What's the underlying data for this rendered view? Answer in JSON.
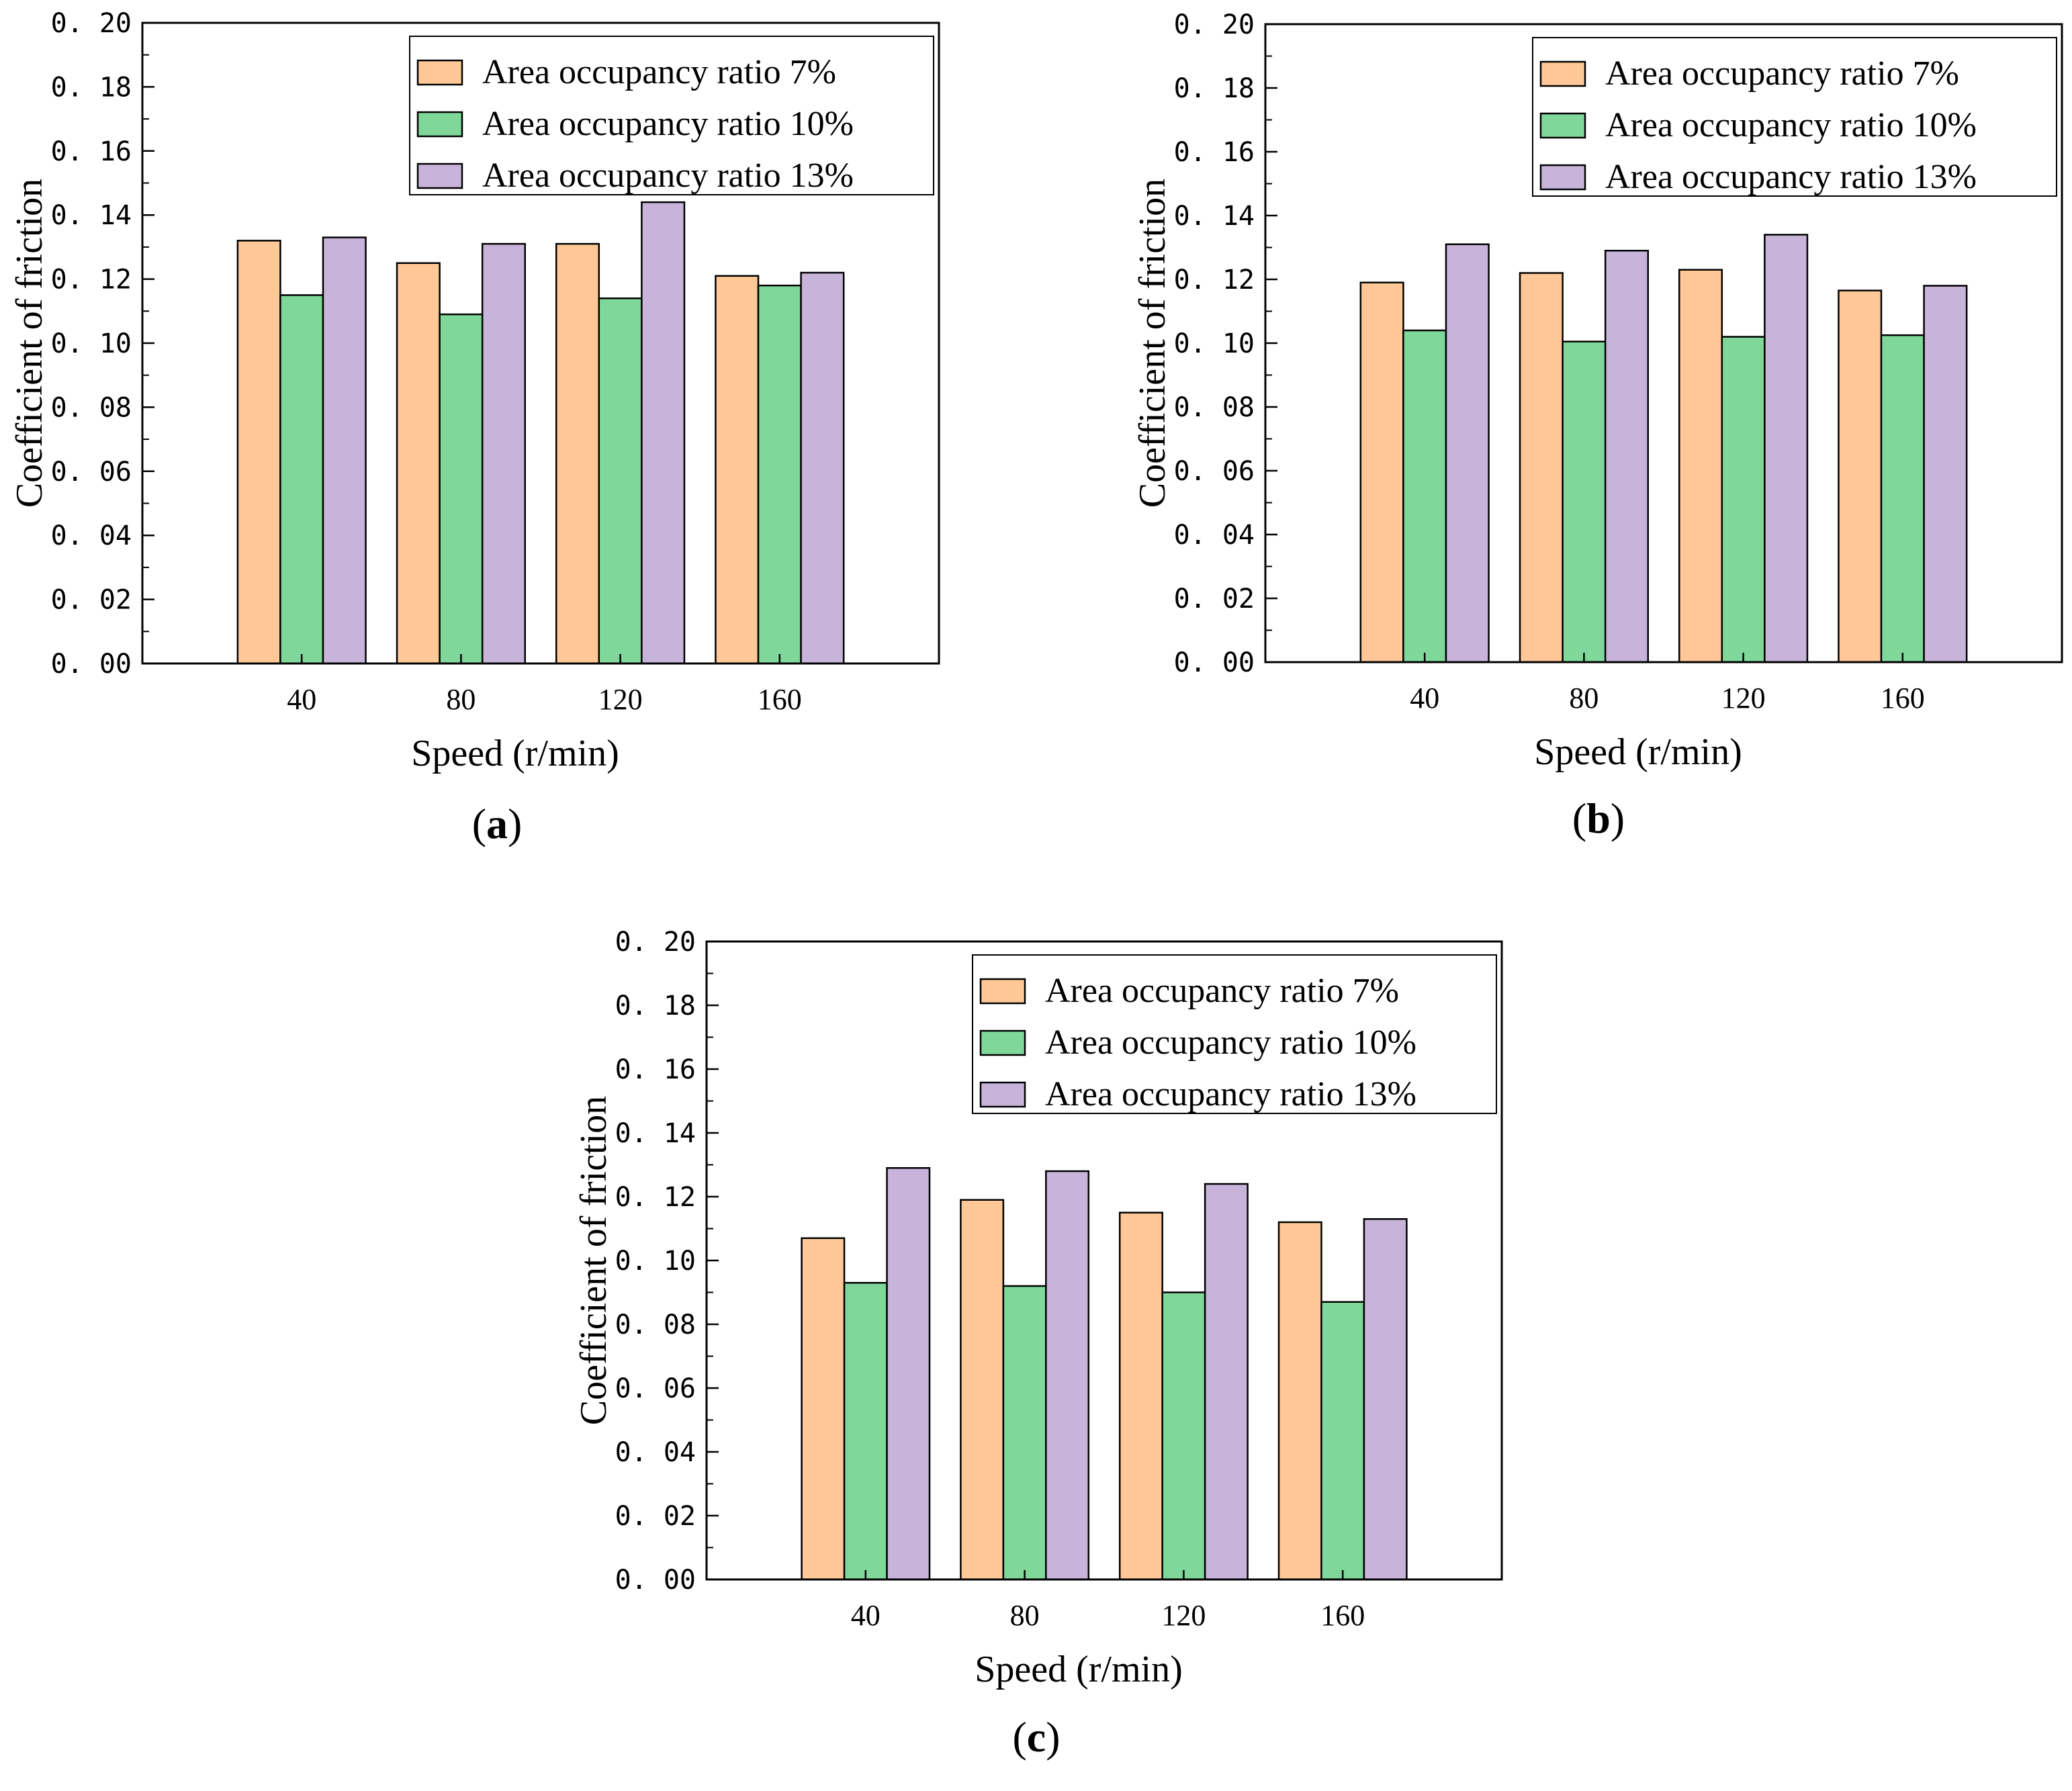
{
  "figure": {
    "panels": [
      "(a)",
      "(b)",
      "(c)"
    ]
  },
  "colors": {
    "ratio_7": "#FFC896",
    "ratio_10": "#7FD89A",
    "ratio_13": "#C8B4DA",
    "axis": "#000000"
  },
  "chart_data": [
    {
      "type": "bar",
      "panel_label": "(a)",
      "caption_letter": "a",
      "categories": [
        "40",
        "80",
        "120",
        "160"
      ],
      "series": [
        {
          "name": "Area occupancy ratio 7%",
          "color_key": "ratio_7",
          "values": [
            0.132,
            0.125,
            0.131,
            0.121
          ]
        },
        {
          "name": "Area occupancy ratio 10%",
          "color_key": "ratio_10",
          "values": [
            0.115,
            0.109,
            0.114,
            0.118
          ]
        },
        {
          "name": "Area occupancy ratio 13%",
          "color_key": "ratio_13",
          "values": [
            0.133,
            0.131,
            0.144,
            0.122
          ]
        }
      ],
      "yticks": [
        "0. 00",
        "0. 02",
        "0. 04",
        "0. 06",
        "0. 08",
        "0. 10",
        "0. 12",
        "0. 14",
        "0. 16",
        "0. 18",
        "0. 20"
      ],
      "ylim": [
        0,
        0.2
      ],
      "xlabel": "Speed (r/min)",
      "ylabel": "Coefficient of friction",
      "legend_position": "top-right",
      "grid": false
    },
    {
      "type": "bar",
      "panel_label": "(b)",
      "caption_letter": "b",
      "categories": [
        "40",
        "80",
        "120",
        "160"
      ],
      "series": [
        {
          "name": "Area occupancy ratio 7%",
          "color_key": "ratio_7",
          "values": [
            0.119,
            0.122,
            0.123,
            0.1165
          ]
        },
        {
          "name": "Area occupancy ratio 10%",
          "color_key": "ratio_10",
          "values": [
            0.104,
            0.1005,
            0.102,
            0.1025
          ]
        },
        {
          "name": "Area occupancy ratio 13%",
          "color_key": "ratio_13",
          "values": [
            0.131,
            0.129,
            0.134,
            0.118
          ]
        }
      ],
      "yticks": [
        "0. 00",
        "0. 02",
        "0. 04",
        "0. 06",
        "0. 08",
        "0. 10",
        "0. 12",
        "0. 14",
        "0. 16",
        "0. 18",
        "0. 20"
      ],
      "ylim": [
        0,
        0.2
      ],
      "xlabel": "Speed (r/min)",
      "ylabel": "Coefficient of friction",
      "legend_position": "top-right",
      "grid": false
    },
    {
      "type": "bar",
      "panel_label": "(c)",
      "caption_letter": "c",
      "categories": [
        "40",
        "80",
        "120",
        "160"
      ],
      "series": [
        {
          "name": "Area occupancy ratio 7%",
          "color_key": "ratio_7",
          "values": [
            0.107,
            0.119,
            0.115,
            0.112
          ]
        },
        {
          "name": "Area occupancy ratio 10%",
          "color_key": "ratio_10",
          "values": [
            0.093,
            0.092,
            0.09,
            0.087
          ]
        },
        {
          "name": "Area occupancy ratio 13%",
          "color_key": "ratio_13",
          "values": [
            0.129,
            0.128,
            0.124,
            0.113
          ]
        }
      ],
      "yticks": [
        "0. 00",
        "0. 02",
        "0. 04",
        "0. 06",
        "0. 08",
        "0. 10",
        "0. 12",
        "0. 14",
        "0. 16",
        "0. 18",
        "0. 20"
      ],
      "ylim": [
        0,
        0.2
      ],
      "xlabel": "Speed (r/min)",
      "ylabel": "Coefficient of friction",
      "legend_position": "top-right",
      "grid": false
    }
  ]
}
